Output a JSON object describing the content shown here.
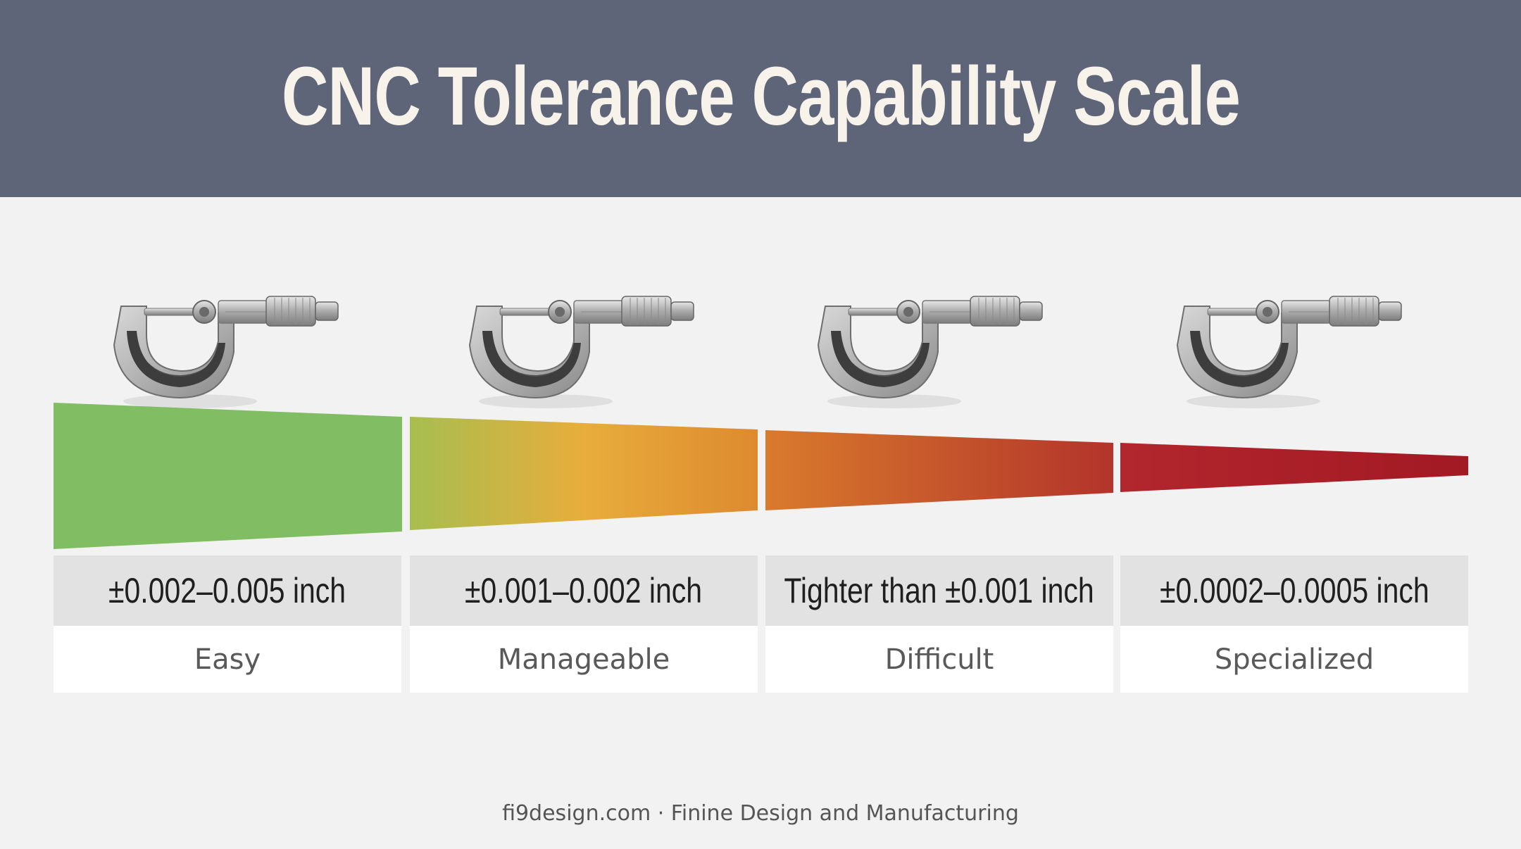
{
  "title": "CNC Tolerance Capability Scale",
  "levels": [
    {
      "range": "±0.002–0.005 inch",
      "label": "Easy"
    },
    {
      "range": "±0.001–0.002 inch",
      "label": "Manageable"
    },
    {
      "range": "Tighter than ±0.001 inch",
      "label": "Difficult"
    },
    {
      "range": "±0.0002–0.0005 inch",
      "label": "Specialized"
    }
  ],
  "colors": {
    "header": "#5f6579",
    "green": "#80bd63",
    "orange": "#e8ad3c",
    "red": "#a91d27"
  },
  "icon": "micrometer-icon",
  "footer": "fi9design.com · Finine Design and Manufacturing"
}
